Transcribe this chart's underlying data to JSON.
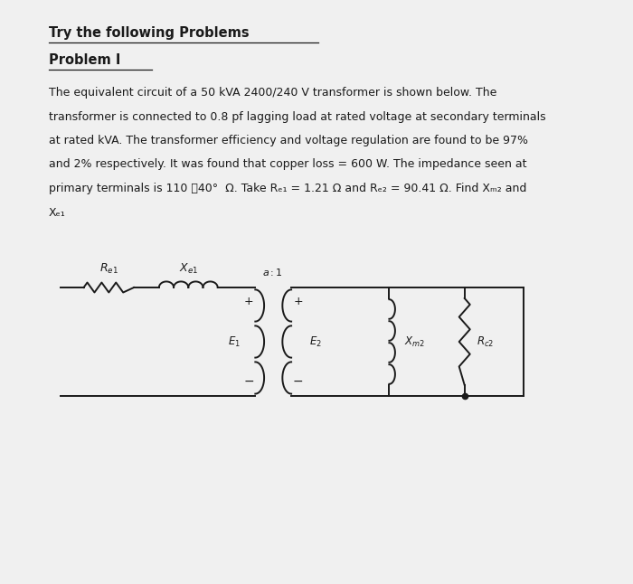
{
  "title_line1": "Try the following Problems",
  "title_line2": "Problem I",
  "body_lines": [
    "The equivalent circuit of a 50 kVA 2400/240 V transformer is shown below. The",
    "transformer is connected to 0.8 pf lagging load at rated voltage at secondary terminals",
    "at rated kVA. The transformer efficiency and voltage regulation are found to be 97%",
    "and 2% respectively. It was found that copper loss = 600 W. The impedance seen at",
    "primary terminals is 110 ␀40°  Ω. Take Rₑ₁ = 1.21 Ω and Rₑ₂ = 90.41 Ω. Find Xₘ₂ and",
    "Xₑ₁"
  ],
  "bg_color": "#f0f0f0",
  "text_color": "#1a1a1a",
  "circuit_line_color": "#1a1a1a"
}
